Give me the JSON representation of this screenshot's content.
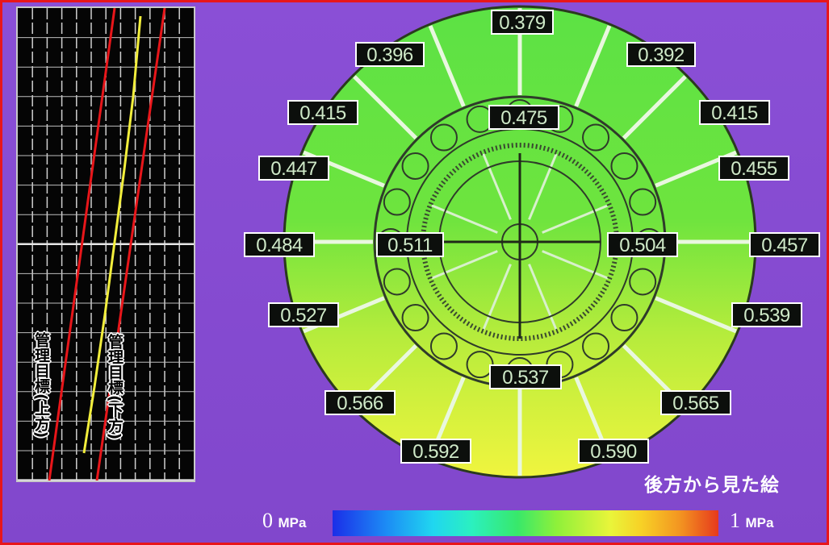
{
  "trend": {
    "label_upper": "管理目標",
    "label_upper_suffix": "(上方)",
    "label_lower": "管理目標",
    "label_lower_suffix": "(下方)",
    "colors": {
      "limit_lines": "#e8161a",
      "trend_line": "#f2ee3c",
      "grid": "#d8d8d8",
      "background": "#050505"
    }
  },
  "pressure_map": {
    "values": {
      "top_center": "0.379",
      "upper_left": "0.396",
      "upper_right": "0.392",
      "second_left": "0.415",
      "second_right": "0.415",
      "inner_top": "0.475",
      "third_left": "0.447",
      "third_right": "0.455",
      "mid_outer_left": "0.484",
      "mid_inner_left": "0.511",
      "mid_inner_right": "0.504",
      "mid_outer_right": "0.457",
      "fourth_left": "0.527",
      "fourth_right": "0.539",
      "inner_bottom": "0.537",
      "fifth_left": "0.566",
      "fifth_right": "0.565",
      "bottom_left": "0.592",
      "bottom_right": "0.590"
    },
    "caption": "後方から見た絵"
  },
  "scale": {
    "min_value": "0",
    "min_unit": "MPa",
    "max_value": "1",
    "max_unit": "MPa"
  },
  "colors": {
    "background": "#8a4fd6",
    "frame": "#e8161a",
    "label_bg": "#0c0f0c",
    "label_text": "#cfe9c8"
  }
}
